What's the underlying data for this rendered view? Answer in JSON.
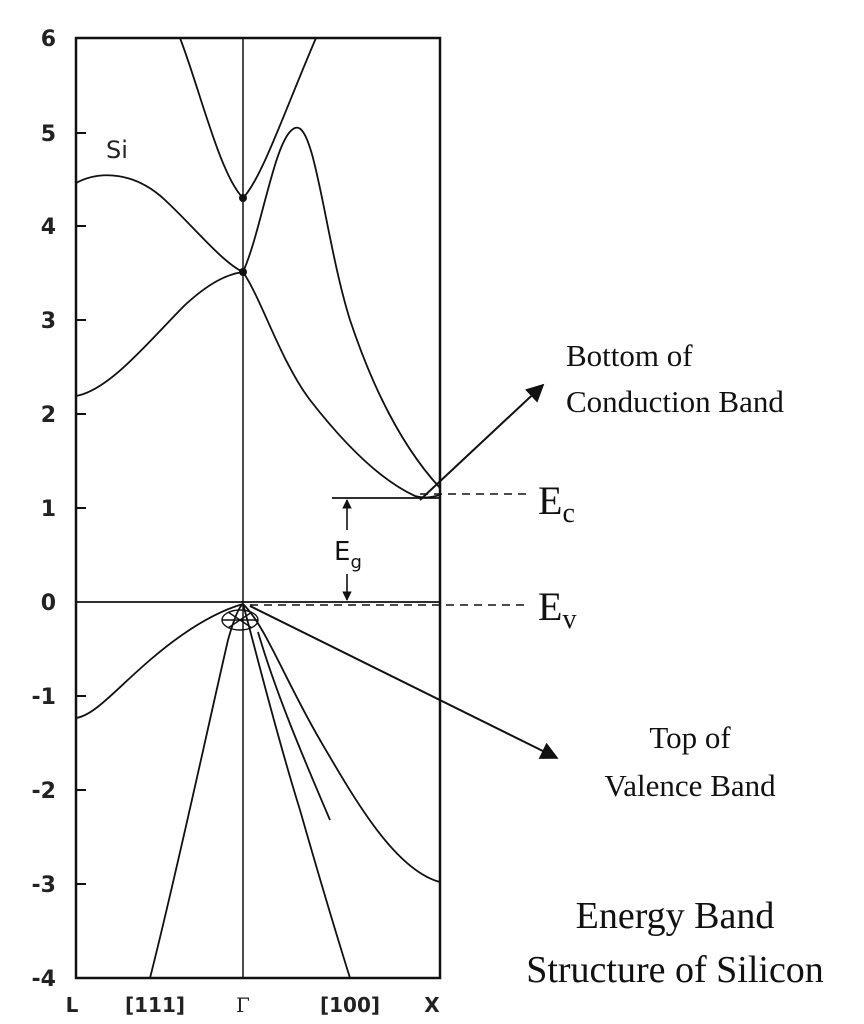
{
  "chart_data": {
    "type": "line",
    "material_label": "Si",
    "title": "Energy Band Structure of Silicon",
    "title_lines": [
      "Energy Band",
      "Structure of Silicon"
    ],
    "ylim": [
      -4,
      6
    ],
    "y_ticks": [
      "6",
      "5",
      "4",
      "3",
      "2",
      "1",
      "0",
      "-1",
      "-2",
      "-3",
      "-4"
    ],
    "x_ticks": [
      "L",
      "[111]",
      "Γ",
      "[100]",
      "X"
    ],
    "levels": {
      "Ec": 1.1,
      "Ev": 0,
      "Ec_label": "E",
      "Ec_sub": "c",
      "Ev_label": "E",
      "Ev_sub": "v",
      "Eg_label": "E",
      "Eg_sub": "g"
    },
    "annotations": {
      "cb_lines": [
        "Bottom of",
        "Conduction Band"
      ],
      "vb_lines": [
        "Top of",
        "Valence Band"
      ]
    }
  }
}
